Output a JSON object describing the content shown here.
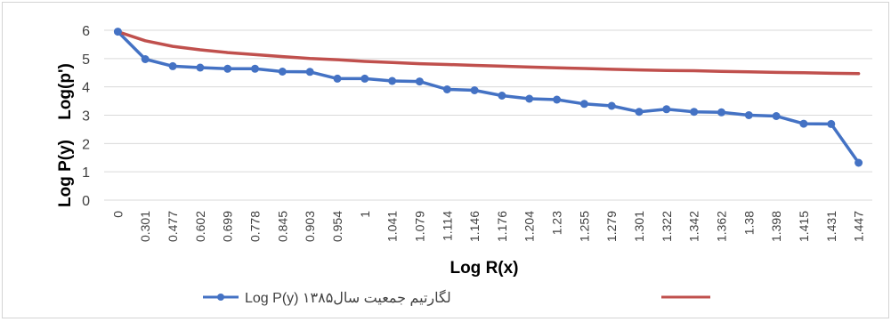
{
  "chart_data": {
    "type": "line",
    "categories": [
      "0",
      "0.301",
      "0.477",
      "0.602",
      "0.699",
      "0.778",
      "0.845",
      "0.903",
      "0.954",
      "1",
      "1.041",
      "1.079",
      "1.114",
      "1.146",
      "1.176",
      "1.204",
      "1.23",
      "1.255",
      "1.279",
      "1.301",
      "1.322",
      "1.342",
      "1.362",
      "1.38",
      "1.398",
      "1.415",
      "1.431",
      "1.447"
    ],
    "xlabel": "Log R(x)",
    "ylabel_top": "Log(p')",
    "ylabel_bottom": "Log P(y)",
    "ylim": [
      0,
      6
    ],
    "yticks": [
      "0",
      "1",
      "2",
      "3",
      "4",
      "5",
      "6"
    ],
    "grid": "horizontal",
    "legend_position": "bottom",
    "series": [
      {
        "name": "Log P(y)  لگارتیم جمعیت سال۱۳۸۵",
        "color": "#4472c4",
        "markers": true,
        "values": [
          5.95,
          4.98,
          4.73,
          4.68,
          4.64,
          4.64,
          4.54,
          4.53,
          4.29,
          4.29,
          4.21,
          4.19,
          3.91,
          3.88,
          3.69,
          3.58,
          3.55,
          3.4,
          3.33,
          3.12,
          3.21,
          3.12,
          3.1,
          3.0,
          2.97,
          2.7,
          2.69,
          1.32
        ]
      },
      {
        "name": "",
        "color": "#c0504d",
        "markers": false,
        "values": [
          5.95,
          5.63,
          5.43,
          5.31,
          5.21,
          5.14,
          5.07,
          5.0,
          4.96,
          4.9,
          4.86,
          4.82,
          4.79,
          4.76,
          4.73,
          4.7,
          4.67,
          4.65,
          4.62,
          4.6,
          4.58,
          4.57,
          4.55,
          4.53,
          4.51,
          4.5,
          4.48,
          4.47
        ]
      }
    ]
  }
}
